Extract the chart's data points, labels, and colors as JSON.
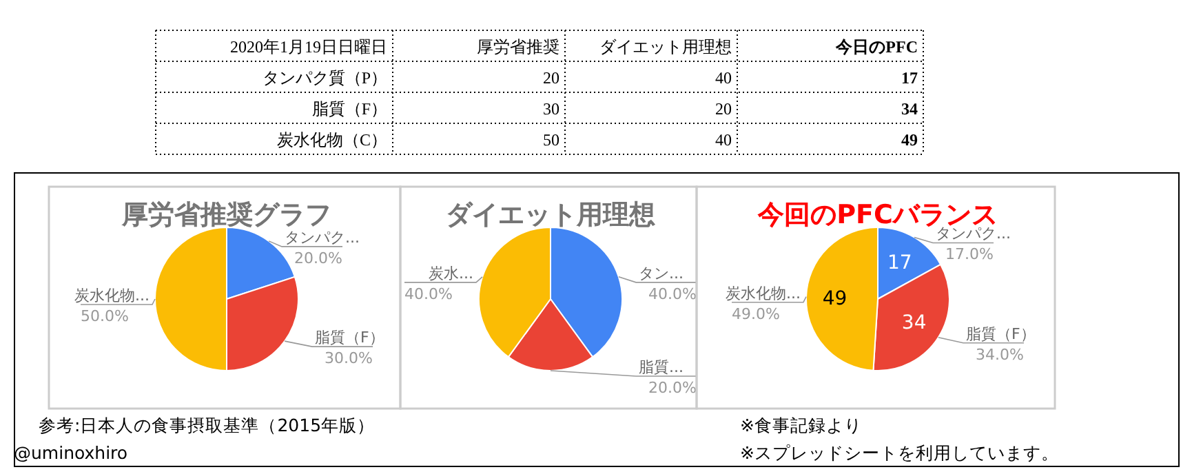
{
  "chart_data": [
    {
      "type": "other",
      "title": "2020年1月19日日曜日",
      "categories": [
        "タンパク質（P）",
        "脂質（F）",
        "炭水化物（C）"
      ],
      "data_labels": true,
      "series": [
        {
          "name": "厚労省推奨",
          "values": [
            20,
            30,
            50
          ]
        },
        {
          "name": "ダイエット用理想",
          "values": [
            40,
            20,
            40
          ]
        },
        {
          "name": "今日のPFC",
          "values": [
            17,
            34,
            49
          ]
        }
      ],
      "annotations": [
        "参考:日本人の食事摂取基準（2015年版）",
        "@uminoxhiro",
        "※食事記録より",
        "※スプレッドシートを利用しています。"
      ]
    },
    {
      "type": "pie",
      "title": "厚労省推奨グラフ",
      "categories": [
        "タンパク...",
        "脂質（F）",
        "炭水化物..."
      ],
      "values": [
        20,
        30,
        50
      ],
      "colors": [
        "#4285f4",
        "#ea4335",
        "#fbbc04"
      ],
      "value_labels": [
        "20.0%",
        "30.0%",
        "50.0%"
      ]
    },
    {
      "type": "pie",
      "title": "ダイエット用理想",
      "categories": [
        "タン...",
        "脂質...",
        "炭水..."
      ],
      "values": [
        40,
        20,
        40
      ],
      "colors": [
        "#4285f4",
        "#ea4335",
        "#fbbc04"
      ],
      "value_labels": [
        "40.0%",
        "20.0%",
        "40.0%"
      ]
    },
    {
      "type": "pie",
      "title": "今回のPFCバランス",
      "categories": [
        "タンパク...",
        "脂質（F）",
        "炭水化物..."
      ],
      "values": [
        17,
        34,
        49
      ],
      "colors": [
        "#4285f4",
        "#ea4335",
        "#fbbc04"
      ],
      "value_labels": [
        "17.0%",
        "34.0%",
        "49.0%"
      ],
      "annotations": [
        "17",
        "34",
        "49"
      ]
    }
  ]
}
